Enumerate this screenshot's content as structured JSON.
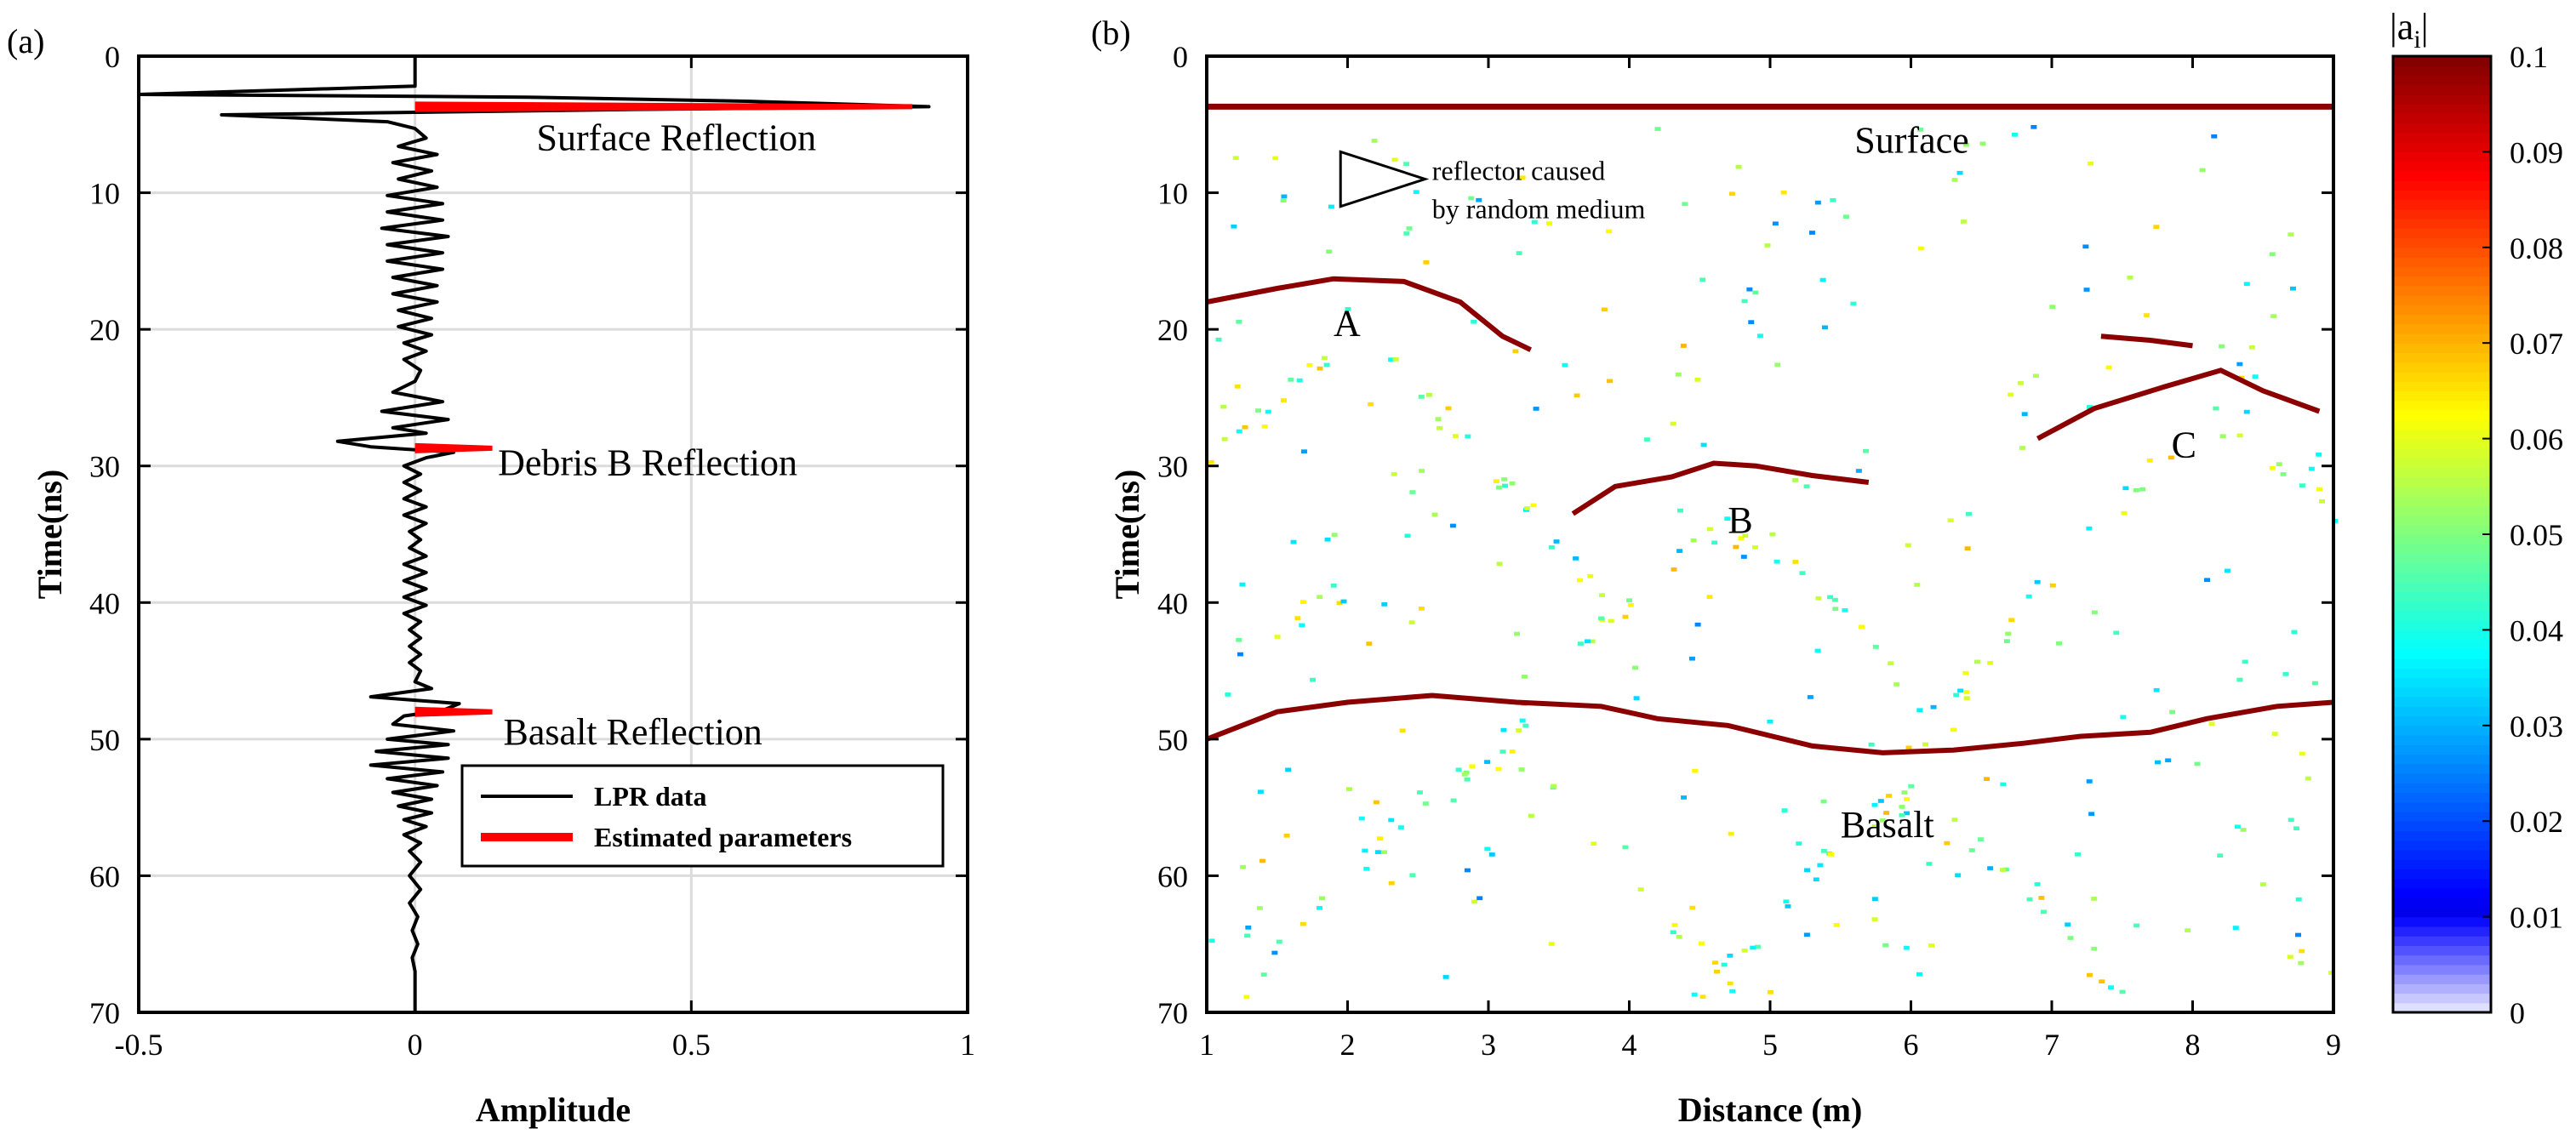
{
  "chart_data": [
    {
      "type": "line",
      "panel_label": "(a)",
      "title": "",
      "xlabel": "Amplitude",
      "ylabel": "Time(ns)",
      "xlim": [
        -0.5,
        1
      ],
      "ylim": [
        0,
        70
      ],
      "y_inverted": true,
      "grid": true,
      "xticks": [
        -0.5,
        0,
        0.5,
        1
      ],
      "xtick_labels": [
        "-0.5",
        "0",
        "0.5",
        "1"
      ],
      "yticks": [
        0,
        10,
        20,
        30,
        40,
        50,
        60,
        70
      ],
      "ytick_labels": [
        "0",
        "10",
        "20",
        "30",
        "40",
        "50",
        "60",
        "70"
      ],
      "series": [
        {
          "name": "LPR data",
          "color": "#000000",
          "points": [
            [
              0.0,
              0.0
            ],
            [
              0.0,
              2.2
            ],
            [
              -0.25,
              2.5
            ],
            [
              -0.5,
              2.8
            ],
            [
              0.2,
              3.0
            ],
            [
              0.6,
              3.3
            ],
            [
              0.93,
              3.7
            ],
            [
              0.4,
              3.9
            ],
            [
              -0.35,
              4.3
            ],
            [
              -0.05,
              4.8
            ],
            [
              0.0,
              5.3
            ],
            [
              0.02,
              6.0
            ],
            [
              -0.03,
              6.6
            ],
            [
              0.04,
              7.2
            ],
            [
              -0.04,
              7.8
            ],
            [
              0.03,
              8.4
            ],
            [
              -0.03,
              9.0
            ],
            [
              0.04,
              9.6
            ],
            [
              -0.05,
              10.2
            ],
            [
              0.05,
              10.8
            ],
            [
              -0.05,
              11.4
            ],
            [
              0.05,
              12.0
            ],
            [
              -0.06,
              12.6
            ],
            [
              0.06,
              13.2
            ],
            [
              -0.05,
              13.8
            ],
            [
              0.05,
              14.4
            ],
            [
              -0.05,
              15.0
            ],
            [
              0.05,
              15.6
            ],
            [
              -0.04,
              16.2
            ],
            [
              0.04,
              16.8
            ],
            [
              -0.04,
              17.4
            ],
            [
              0.04,
              18.0
            ],
            [
              -0.03,
              18.6
            ],
            [
              0.03,
              19.2
            ],
            [
              -0.03,
              19.8
            ],
            [
              0.03,
              20.4
            ],
            [
              -0.02,
              21.0
            ],
            [
              0.02,
              21.6
            ],
            [
              -0.02,
              22.2
            ],
            [
              0.01,
              23.0
            ],
            [
              0.0,
              23.8
            ],
            [
              -0.04,
              24.6
            ],
            [
              0.05,
              25.3
            ],
            [
              -0.06,
              26.0
            ],
            [
              0.06,
              26.6
            ],
            [
              -0.04,
              27.2
            ],
            [
              0.02,
              27.6
            ],
            [
              -0.14,
              28.2
            ],
            [
              -0.08,
              28.6
            ],
            [
              0.07,
              29.0
            ],
            [
              0.02,
              29.4
            ],
            [
              -0.02,
              30.0
            ],
            [
              0.01,
              30.6
            ],
            [
              -0.02,
              31.2
            ],
            [
              0.01,
              31.8
            ],
            [
              -0.02,
              32.4
            ],
            [
              0.02,
              33.0
            ],
            [
              -0.02,
              33.6
            ],
            [
              0.02,
              34.2
            ],
            [
              -0.01,
              34.8
            ],
            [
              0.01,
              35.4
            ],
            [
              -0.01,
              36.0
            ],
            [
              0.02,
              36.6
            ],
            [
              -0.02,
              37.2
            ],
            [
              0.02,
              37.8
            ],
            [
              -0.02,
              38.4
            ],
            [
              0.02,
              39.0
            ],
            [
              -0.02,
              39.6
            ],
            [
              0.02,
              40.2
            ],
            [
              -0.02,
              40.8
            ],
            [
              0.01,
              41.4
            ],
            [
              -0.01,
              42.0
            ],
            [
              0.01,
              42.6
            ],
            [
              -0.01,
              43.2
            ],
            [
              0.01,
              43.8
            ],
            [
              -0.01,
              44.4
            ],
            [
              0.01,
              45.0
            ],
            [
              0.0,
              45.8
            ],
            [
              0.03,
              46.3
            ],
            [
              -0.08,
              46.9
            ],
            [
              0.08,
              47.4
            ],
            [
              0.05,
              47.9
            ],
            [
              -0.02,
              48.3
            ],
            [
              -0.04,
              48.9
            ],
            [
              0.07,
              49.4
            ],
            [
              -0.05,
              50.0
            ],
            [
              0.06,
              50.4
            ],
            [
              -0.07,
              50.9
            ],
            [
              0.06,
              51.4
            ],
            [
              -0.08,
              51.9
            ],
            [
              0.05,
              52.4
            ],
            [
              -0.05,
              52.9
            ],
            [
              0.04,
              53.4
            ],
            [
              -0.04,
              53.9
            ],
            [
              0.03,
              54.4
            ],
            [
              -0.03,
              54.9
            ],
            [
              0.03,
              55.4
            ],
            [
              -0.02,
              55.9
            ],
            [
              0.02,
              56.4
            ],
            [
              -0.02,
              57.0
            ],
            [
              0.01,
              57.6
            ],
            [
              -0.01,
              58.2
            ],
            [
              0.01,
              59.0
            ],
            [
              -0.01,
              60.0
            ],
            [
              0.01,
              61.0
            ],
            [
              -0.01,
              62.0
            ],
            [
              0.005,
              63.0
            ],
            [
              -0.005,
              64.0
            ],
            [
              0.005,
              65.0
            ],
            [
              -0.005,
              66.0
            ],
            [
              0.0,
              67.0
            ],
            [
              0.0,
              70.0
            ]
          ]
        },
        {
          "name": "Estimated parameters",
          "color": "#ff0000",
          "segments": [
            {
              "time": 3.7,
              "amplitude": 0.9
            },
            {
              "time": 28.7,
              "amplitude": 0.14
            },
            {
              "time": 48.0,
              "amplitude": 0.14
            }
          ]
        }
      ],
      "annotations": [
        {
          "text": "Surface Reflection",
          "x": 0.22,
          "y": 6.0
        },
        {
          "text": "Debris B Reflection",
          "x": 0.15,
          "y": 29.8
        },
        {
          "text": "Basalt Reflection",
          "x": 0.16,
          "y": 49.5
        }
      ],
      "legend": {
        "position": "bottom-right",
        "entries": [
          {
            "label": "LPR data",
            "color": "#000000"
          },
          {
            "label": "Estimated parameters",
            "color": "#ff0000"
          }
        ]
      }
    },
    {
      "type": "heatmap",
      "panel_label": "(b)",
      "title": "",
      "xlabel": "Distance (m)",
      "ylabel": "Time(ns)",
      "xlim": [
        1,
        9
      ],
      "ylim": [
        0,
        70
      ],
      "y_inverted": true,
      "xticks": [
        1,
        2,
        3,
        4,
        5,
        6,
        7,
        8,
        9
      ],
      "xtick_labels": [
        "1",
        "2",
        "3",
        "4",
        "5",
        "6",
        "7",
        "8",
        "9"
      ],
      "yticks": [
        0,
        10,
        20,
        30,
        40,
        50,
        60,
        70
      ],
      "ytick_labels": [
        "0",
        "10",
        "20",
        "30",
        "40",
        "50",
        "60",
        "70"
      ],
      "value_label": "|a",
      "value_label_subscript": "i",
      "value_label_suffix": "|",
      "colorbar": {
        "range": [
          0,
          0.1
        ],
        "ticks": [
          0,
          0.01,
          0.02,
          0.03,
          0.04,
          0.05,
          0.06,
          0.07,
          0.08,
          0.09,
          0.1
        ],
        "tick_labels": [
          "0",
          "0.01",
          "0.02",
          "0.03",
          "0.04",
          "0.05",
          "0.06",
          "0.07",
          "0.08",
          "0.09",
          "0.1"
        ]
      },
      "reflectors": [
        {
          "name": "Surface",
          "value": 0.1,
          "points": [
            [
              1.0,
              3.7
            ],
            [
              9.0,
              3.7
            ]
          ]
        },
        {
          "name": "A",
          "value": 0.1,
          "points": [
            [
              1.0,
              18.0
            ],
            [
              1.5,
              17.0
            ],
            [
              1.9,
              16.3
            ],
            [
              2.4,
              16.5
            ],
            [
              2.8,
              18.0
            ],
            [
              3.1,
              20.5
            ],
            [
              3.3,
              21.5
            ]
          ]
        },
        {
          "name": "B",
          "value": 0.1,
          "points": [
            [
              3.6,
              33.5
            ],
            [
              3.9,
              31.5
            ],
            [
              4.3,
              30.8
            ],
            [
              4.6,
              29.8
            ],
            [
              4.9,
              30.0
            ],
            [
              5.3,
              30.7
            ],
            [
              5.7,
              31.2
            ]
          ]
        },
        {
          "name": "C",
          "value": 0.1,
          "points": [
            [
              6.9,
              28.0
            ],
            [
              7.3,
              25.8
            ],
            [
              7.8,
              24.2
            ],
            [
              8.2,
              23.0
            ],
            [
              8.5,
              24.5
            ],
            [
              8.9,
              26.0
            ]
          ]
        },
        {
          "name": "C-upper",
          "value": 0.1,
          "points": [
            [
              7.35,
              20.5
            ],
            [
              7.7,
              20.8
            ],
            [
              8.0,
              21.2
            ]
          ]
        },
        {
          "name": "Basalt",
          "value": 0.1,
          "points": [
            [
              1.0,
              50.0
            ],
            [
              1.5,
              48.0
            ],
            [
              2.0,
              47.3
            ],
            [
              2.6,
              46.8
            ],
            [
              3.2,
              47.3
            ],
            [
              3.8,
              47.6
            ],
            [
              4.2,
              48.5
            ],
            [
              4.7,
              49.0
            ],
            [
              5.3,
              50.5
            ],
            [
              5.8,
              51.0
            ],
            [
              6.3,
              50.8
            ],
            [
              6.8,
              50.3
            ],
            [
              7.2,
              49.8
            ],
            [
              7.7,
              49.5
            ],
            [
              8.1,
              48.5
            ],
            [
              8.6,
              47.6
            ],
            [
              9.0,
              47.3
            ]
          ]
        }
      ],
      "annotations": [
        {
          "text": "Surface",
          "x": 5.6,
          "y": 6.2
        },
        {
          "text": "reflector caused",
          "x": 2.6,
          "y": 8.2
        },
        {
          "text": "by random medium",
          "x": 2.6,
          "y": 11.0
        },
        {
          "text": "A",
          "x": 1.9,
          "y": 19.6
        },
        {
          "text": "B",
          "x": 4.7,
          "y": 34.0
        },
        {
          "text": "C",
          "x": 7.85,
          "y": 28.5
        },
        {
          "text": "Basalt",
          "x": 5.5,
          "y": 56.3
        }
      ],
      "marker": {
        "shape": "triangle",
        "x": [
          1.95,
          2.55
        ],
        "y": [
          7.0,
          11.0
        ]
      }
    }
  ]
}
